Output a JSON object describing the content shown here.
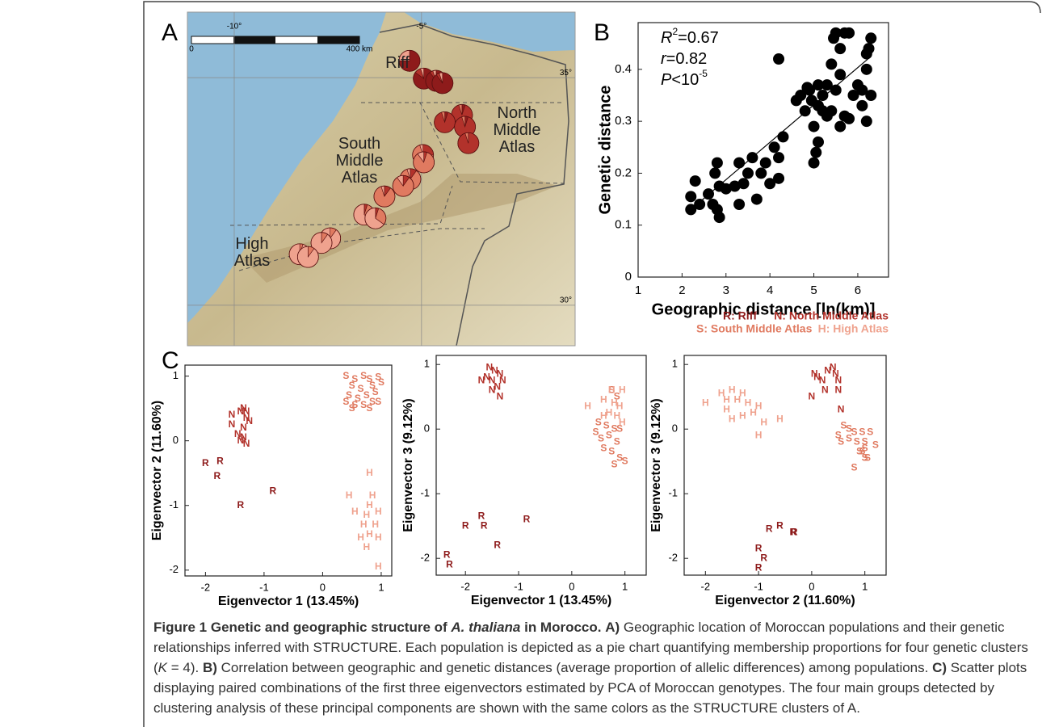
{
  "A": {
    "label": "A",
    "lonlim": [
      -11.25,
      -0.9
    ],
    "latlim": [
      29.11,
      36.44
    ],
    "lonticks": [
      {
        "value": -10,
        "label": "-10°"
      },
      {
        "value": -5,
        "label": "-5°"
      }
    ],
    "latticks": [
      {
        "value": 35,
        "label": "35°"
      },
      {
        "value": 30,
        "label": "30°"
      }
    ],
    "scale_bar": [
      "0",
      "400 km"
    ],
    "regions": [
      "Riff",
      "North Middle Atlas",
      "South Middle Atlas",
      "High Atlas"
    ],
    "pies": [
      {
        "lon": -5.32,
        "lat": 35.37,
        "values": [
          75,
          0,
          0,
          25
        ]
      },
      {
        "lon": -4.94,
        "lat": 34.98,
        "values": [
          85,
          10,
          0,
          5
        ]
      },
      {
        "lon": -4.61,
        "lat": 34.93,
        "values": [
          90,
          5,
          0,
          5
        ]
      },
      {
        "lon": -4.44,
        "lat": 34.88,
        "values": [
          90,
          5,
          0,
          5
        ]
      },
      {
        "lon": -3.92,
        "lat": 34.18,
        "values": [
          5,
          90,
          5,
          0
        ]
      },
      {
        "lon": -4.38,
        "lat": 34.02,
        "values": [
          5,
          90,
          5,
          0
        ]
      },
      {
        "lon": -3.84,
        "lat": 33.92,
        "values": [
          5,
          90,
          5,
          0
        ]
      },
      {
        "lon": -3.75,
        "lat": 33.56,
        "values": [
          0,
          95,
          5,
          0
        ]
      },
      {
        "lon": -4.96,
        "lat": 33.3,
        "values": [
          0,
          25,
          70,
          5
        ]
      },
      {
        "lon": -4.94,
        "lat": 33.14,
        "values": [
          0,
          5,
          85,
          10
        ]
      },
      {
        "lon": -5.3,
        "lat": 32.77,
        "values": [
          0,
          10,
          85,
          5
        ]
      },
      {
        "lon": -5.49,
        "lat": 32.62,
        "values": [
          0,
          10,
          80,
          10
        ]
      },
      {
        "lon": -5.99,
        "lat": 32.39,
        "values": [
          0,
          10,
          85,
          5
        ]
      },
      {
        "lon": -6.53,
        "lat": 31.99,
        "values": [
          0,
          5,
          30,
          65
        ]
      },
      {
        "lon": -6.23,
        "lat": 31.91,
        "values": [
          0,
          5,
          30,
          65
        ]
      },
      {
        "lon": -7.44,
        "lat": 31.47,
        "values": [
          0,
          0,
          10,
          90
        ]
      },
      {
        "lon": -7.67,
        "lat": 31.37,
        "values": [
          0,
          0,
          10,
          90
        ]
      },
      {
        "lon": -8.25,
        "lat": 31.12,
        "values": [
          0,
          0,
          5,
          95
        ]
      },
      {
        "lon": -8.03,
        "lat": 31.06,
        "values": [
          0,
          0,
          10,
          90
        ]
      }
    ]
  },
  "B": {
    "label": "B",
    "type": "scatter",
    "xlabel": "Geographic distance [ln(km)]",
    "ylabel": "Genetic distance",
    "xlim": [
      1,
      6.7
    ],
    "ylim": [
      0,
      0.49
    ],
    "xticks": [
      1,
      2,
      3,
      4,
      5,
      6
    ],
    "yticks": [
      0,
      0.1,
      0.2,
      0.3,
      0.4
    ],
    "annotations": [
      [
        {
          "text": "R",
          "italic": true
        },
        {
          "text": "2",
          "sup": true
        },
        {
          "text": "=0.67"
        }
      ],
      [
        {
          "text": "r",
          "italic": true
        },
        {
          "text": "=0.82"
        }
      ],
      [
        {
          "text": "P",
          "italic": true
        },
        {
          "text": "<10"
        },
        {
          "text": "-5",
          "sup": true
        }
      ]
    ],
    "x": [
      2.2,
      2.2,
      2.3,
      2.4,
      2.6,
      2.75,
      2.8,
      2.7,
      2.8,
      2.85,
      2.85,
      3.0,
      3.2,
      3.3,
      3.3,
      3.4,
      3.5,
      3.6,
      3.7,
      3.8,
      3.9,
      4.0,
      4.1,
      4.2,
      4.2,
      4.3,
      4.7,
      4.6,
      4.2,
      4.8,
      4.85,
      4.9,
      5.0,
      5.0,
      5.05,
      5.1,
      5.1,
      5.2,
      5.3,
      5.4,
      5.45,
      5.5,
      5.6,
      5.7,
      5.8,
      5.6,
      5.5,
      5.4,
      5.3,
      5.6,
      5.7,
      5.8,
      5.9,
      6.0,
      6.1,
      6.2,
      6.2,
      6.25,
      6.3,
      6.1,
      6.3,
      6.2,
      5.2,
      5.1,
      4.95
    ],
    "y": [
      0.155,
      0.13,
      0.185,
      0.14,
      0.16,
      0.2,
      0.22,
      0.14,
      0.13,
      0.115,
      0.175,
      0.17,
      0.175,
      0.14,
      0.22,
      0.18,
      0.2,
      0.23,
      0.15,
      0.2,
      0.22,
      0.18,
      0.25,
      0.19,
      0.23,
      0.27,
      0.35,
      0.34,
      0.42,
      0.32,
      0.365,
      0.36,
      0.29,
      0.22,
      0.24,
      0.26,
      0.33,
      0.35,
      0.37,
      0.41,
      0.46,
      0.47,
      0.44,
      0.47,
      0.47,
      0.39,
      0.36,
      0.32,
      0.31,
      0.29,
      0.31,
      0.305,
      0.35,
      0.37,
      0.36,
      0.4,
      0.43,
      0.44,
      0.46,
      0.33,
      0.35,
      0.3,
      0.32,
      0.37,
      0.34
    ],
    "fit_line": {
      "x": [
        2.2,
        6.3
      ],
      "y": [
        0.13,
        0.425
      ]
    }
  },
  "C": {
    "label": "C",
    "groups": [
      {
        "name": "R: Riff",
        "marker": "R",
        "color": "#8e1b1b"
      },
      {
        "name": "N: North Middle Atlas",
        "marker": "N",
        "color": "#b2322b"
      },
      {
        "name": "S: South Middle Atlas",
        "marker": "S",
        "color": "#e07a60"
      },
      {
        "name": "H: High Atlas",
        "marker": "H",
        "color": "#efa28e"
      }
    ],
    "plots": [
      {
        "type": "scatter",
        "xlabel": "Eigenvector 1 (13.45%)",
        "ylabel": "Eigenvector 2 (11.60%)",
        "xlim": [
          -2.35,
          1.18
        ],
        "ylim": [
          -2.09,
          1.17
        ],
        "xticks": [
          -2,
          -1,
          0,
          1
        ],
        "yticks": [
          -2,
          -1,
          0,
          1
        ],
        "series": [
          {
            "x": [
              -2.0,
              -1.75,
              -1.8,
              -1.4,
              -0.85
            ],
            "y": [
              -0.35,
              -0.32,
              -0.55,
              -1.0,
              -0.78
            ]
          },
          {
            "x": [
              -1.55,
              -1.55,
              -1.4,
              -1.35,
              -1.3,
              -1.3,
              -1.45,
              -1.35,
              -1.3,
              -1.4,
              -1.25,
              -1.35
            ],
            "y": [
              0.4,
              0.25,
              0.45,
              0.5,
              0.45,
              0.35,
              0.1,
              0.05,
              -0.05,
              0.0,
              0.3,
              0.2
            ]
          },
          {
            "x": [
              0.4,
              0.55,
              0.7,
              0.8,
              0.95,
              0.5,
              0.65,
              0.85,
              1.0,
              0.45,
              0.6,
              0.75,
              0.9,
              0.55,
              0.7,
              0.85,
              0.4,
              0.5,
              0.95,
              0.8
            ],
            "y": [
              1.0,
              0.95,
              1.0,
              0.95,
              0.98,
              0.85,
              0.8,
              0.85,
              0.9,
              0.7,
              0.65,
              0.7,
              0.75,
              0.55,
              0.55,
              0.6,
              0.6,
              0.5,
              0.6,
              0.5
            ]
          },
          {
            "x": [
              0.8,
              0.45,
              0.85,
              0.55,
              0.8,
              0.75,
              0.95,
              0.7,
              0.9,
              0.65,
              0.8,
              0.95,
              0.75,
              0.95
            ],
            "y": [
              -0.5,
              -0.85,
              -0.85,
              -1.1,
              -1.0,
              -1.15,
              -1.1,
              -1.3,
              -1.3,
              -1.5,
              -1.45,
              -1.5,
              -1.65,
              -1.95
            ]
          }
        ]
      },
      {
        "type": "scatter",
        "xlabel": "Eigenvector 1 (13.45%)",
        "ylabel": "Eigenvector 3 (9.12%)",
        "xlim": [
          -2.55,
          1.4
        ],
        "ylim": [
          -2.26,
          1.14
        ],
        "xticks": [
          -2,
          -1,
          0,
          1
        ],
        "yticks": [
          -2,
          -1,
          0,
          1
        ],
        "series": [
          {
            "x": [
              -2.35,
              -2.3,
              -2.0,
              -1.7,
              -1.65,
              -1.4,
              -0.85
            ],
            "y": [
              -1.95,
              -2.1,
              -1.5,
              -1.35,
              -1.5,
              -1.8,
              -1.4
            ]
          },
          {
            "x": [
              -1.7,
              -1.6,
              -1.5,
              -1.45,
              -1.35,
              -1.3,
              -1.4,
              -1.35,
              -1.5,
              -1.55
            ],
            "y": [
              0.75,
              0.8,
              0.75,
              0.9,
              0.85,
              0.75,
              0.65,
              0.5,
              0.6,
              0.95
            ]
          },
          {
            "x": [
              0.75,
              0.85,
              0.5,
              0.65,
              0.8,
              0.9,
              0.45,
              0.55,
              0.7,
              0.85,
              0.6,
              0.75,
              0.9,
              1.0,
              0.8
            ],
            "y": [
              0.6,
              0.5,
              0.1,
              0.05,
              0.0,
              0.0,
              -0.05,
              -0.15,
              -0.1,
              -0.2,
              -0.3,
              -0.35,
              -0.45,
              -0.5,
              -0.55
            ]
          },
          {
            "x": [
              0.75,
              0.95,
              0.6,
              0.8,
              0.9,
              0.3,
              0.7,
              0.85,
              0.6,
              0.95
            ],
            "y": [
              0.6,
              0.6,
              0.45,
              0.4,
              0.35,
              0.35,
              0.25,
              0.2,
              0.2,
              0.1
            ]
          }
        ]
      },
      {
        "type": "scatter",
        "xlabel": "Eigenvector 2 (11.60%)",
        "ylabel": "Eigenvector 3 (9.12%)",
        "xlim": [
          -2.4,
          1.4
        ],
        "ylim": [
          -2.26,
          1.14
        ],
        "xticks": [
          -2,
          -1,
          0,
          1
        ],
        "yticks": [
          -2,
          -1,
          0,
          1
        ],
        "series": [
          {
            "x": [
              -1.0,
              -0.9,
              -1.0,
              -0.8,
              -0.6,
              -0.35,
              -0.33
            ],
            "y": [
              -1.85,
              -2.0,
              -2.15,
              -1.55,
              -1.5,
              -1.6,
              -1.6
            ]
          },
          {
            "x": [
              0.05,
              0.1,
              0.2,
              0.3,
              0.4,
              0.45,
              0.5,
              0.25,
              0.0,
              0.5,
              0.55
            ],
            "y": [
              0.85,
              0.8,
              0.75,
              0.9,
              0.95,
              0.85,
              0.75,
              0.6,
              0.5,
              0.6,
              0.3
            ]
          },
          {
            "x": [
              0.6,
              0.7,
              0.8,
              0.95,
              1.1,
              0.5,
              0.7,
              0.85,
              1.0,
              1.2,
              0.55,
              0.9,
              1.0,
              0.95,
              1.05,
              0.8,
              1.0
            ],
            "y": [
              0.05,
              0.0,
              -0.05,
              -0.05,
              -0.05,
              -0.1,
              -0.15,
              -0.2,
              -0.2,
              -0.25,
              -0.2,
              -0.35,
              -0.45,
              -0.35,
              -0.45,
              -0.6,
              -0.3
            ]
          },
          {
            "x": [
              -2.0,
              -1.7,
              -1.5,
              -1.3,
              -1.6,
              -1.4,
              -1.2,
              -1.0,
              -1.6,
              -1.1,
              -1.3,
              -1.5,
              -0.9,
              -0.6,
              -1.0
            ],
            "y": [
              0.4,
              0.55,
              0.6,
              0.55,
              0.45,
              0.45,
              0.4,
              0.35,
              0.3,
              0.25,
              0.2,
              0.15,
              0.1,
              0.15,
              -0.1
            ]
          }
        ]
      }
    ]
  },
  "caption": [
    {
      "text": "Figure 1 Genetic and geographic structure of ",
      "bold": true
    },
    {
      "text": "A. thaliana",
      "bold": true,
      "italic": true
    },
    {
      "text": " in Morocco.",
      "bold": true
    },
    {
      "text": " "
    },
    {
      "text": "A)",
      "bold": true
    },
    {
      "text": " Geographic location of Moroccan populations and their genetic relationships inferred with STRUCTURE. Each population is depicted as a pie chart quantifying membership proportions for four genetic clusters ("
    },
    {
      "text": "K",
      "italic": true
    },
    {
      "text": " = 4). "
    },
    {
      "text": "B)",
      "bold": true
    },
    {
      "text": " Correlation between geographic and genetic distances (average proportion of allelic differences) among populations. "
    },
    {
      "text": "C)",
      "bold": true
    },
    {
      "text": " Scatter plots displaying paired combinations of the first three eigenvectors estimated by PCA of Moroccan genotypes. The four main groups detected by clustering analysis of these principal components are shown with the same colors as the STRUCTURE clusters of A."
    }
  ]
}
